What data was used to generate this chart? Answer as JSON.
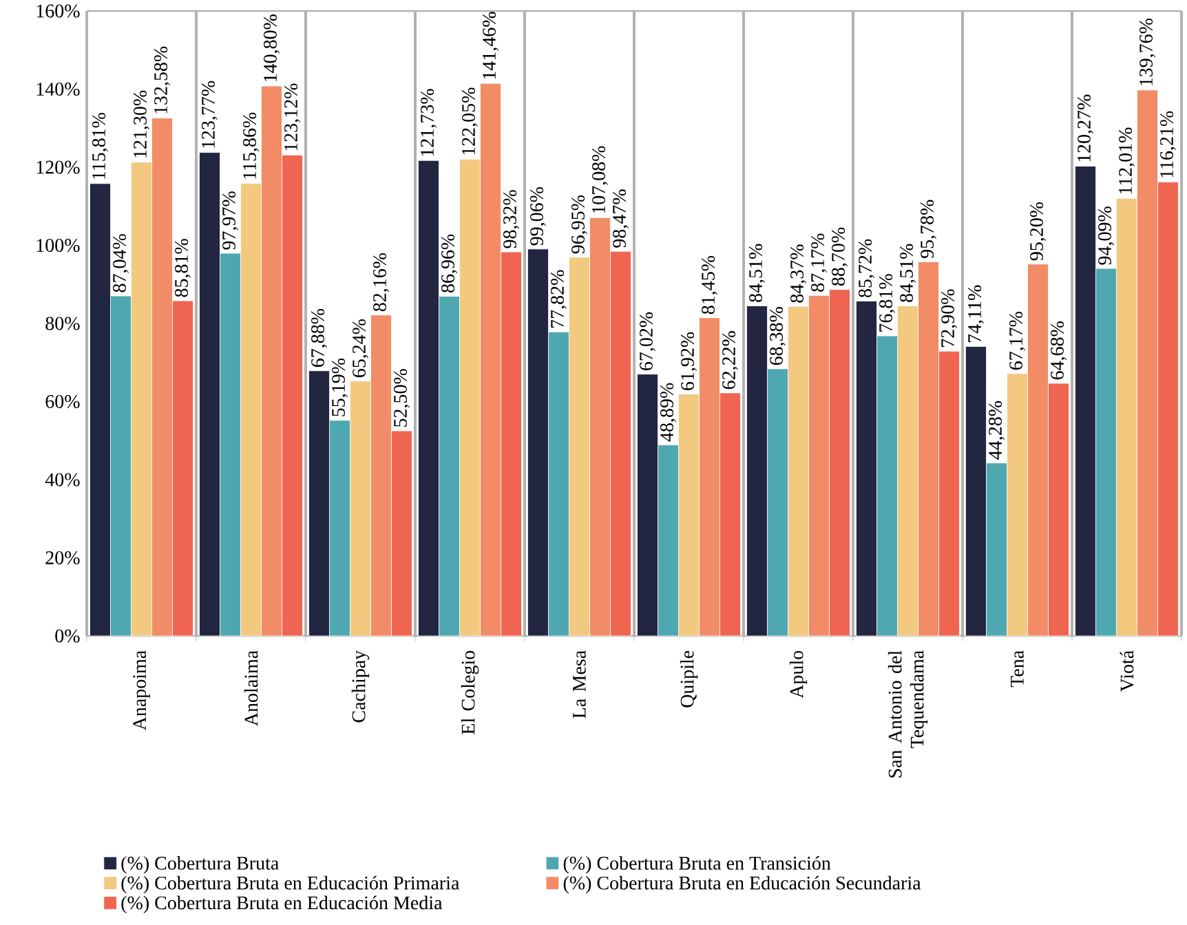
{
  "chart_data": {
    "type": "bar",
    "categories": [
      "Anapoima",
      "Anolaima",
      "Cachipay",
      "El Colegio",
      "La Mesa",
      "Quipile",
      "Apulo",
      "San Antonio del Tequendama",
      "Tena",
      "Viotá"
    ],
    "series": [
      {
        "name": "(%) Cobertura Bruta",
        "color": "#222640",
        "values": [
          115.81,
          123.77,
          67.88,
          121.73,
          99.06,
          67.02,
          84.51,
          85.72,
          74.11,
          120.27
        ],
        "value_labels": [
          "115,81%",
          "123,77%",
          "67,88%",
          "121,73%",
          "99,06%",
          "67,02%",
          "84,51%",
          "85,72%",
          "74,11%",
          "120,27%"
        ]
      },
      {
        "name": "(%) Cobertura Bruta en Transición",
        "color": "#4fa8b1",
        "values": [
          87.04,
          97.97,
          55.19,
          86.96,
          77.82,
          48.89,
          68.38,
          76.81,
          44.28,
          94.09
        ],
        "value_labels": [
          "87,04%",
          "97,97%",
          "55,19%",
          "86,96%",
          "77,82%",
          "48,89%",
          "68,38%",
          "76,81%",
          "44,28%",
          "94,09%"
        ]
      },
      {
        "name": "(%) Cobertura Bruta en Educación Primaria",
        "color": "#f2c97e",
        "values": [
          121.3,
          115.86,
          65.24,
          122.05,
          96.95,
          61.92,
          84.37,
          84.51,
          67.17,
          112.01
        ],
        "value_labels": [
          "121,30%",
          "115,86%",
          "65,24%",
          "122,05%",
          "96,95%",
          "61,92%",
          "84,37%",
          "84,51%",
          "67,17%",
          "112,01%"
        ]
      },
      {
        "name": "(%) Cobertura Bruta en Educación Secundaria",
        "color": "#f28c66",
        "values": [
          132.58,
          140.8,
          82.16,
          141.46,
          107.08,
          81.45,
          87.17,
          95.78,
          95.2,
          139.76
        ],
        "value_labels": [
          "132,58%",
          "140,80%",
          "82,16%",
          "141,46%",
          "107,08%",
          "81,45%",
          "87,17%",
          "95,78%",
          "95,20%",
          "139,76%"
        ]
      },
      {
        "name": "(%) Cobertura Bruta en Educación Media",
        "color": "#f06552",
        "values": [
          85.81,
          123.12,
          52.5,
          98.32,
          98.47,
          62.22,
          88.7,
          72.9,
          64.68,
          116.21
        ],
        "value_labels": [
          "85,81%",
          "123,12%",
          "52,50%",
          "98,32%",
          "98,47%",
          "62,22%",
          "88,70%",
          "72,90%",
          "64,68%",
          "116,21%"
        ]
      }
    ],
    "ylim": [
      0,
      160
    ],
    "yticks": [
      {
        "value": 0,
        "label": "0%"
      },
      {
        "value": 20,
        "label": "20%"
      },
      {
        "value": 40,
        "label": "40%"
      },
      {
        "value": 60,
        "label": "60%"
      },
      {
        "value": 80,
        "label": "80%"
      },
      {
        "value": 100,
        "label": "100%"
      },
      {
        "value": 120,
        "label": "120%"
      },
      {
        "value": 140,
        "label": "140%"
      },
      {
        "value": 160,
        "label": "160%"
      }
    ],
    "legend": "bottom"
  }
}
